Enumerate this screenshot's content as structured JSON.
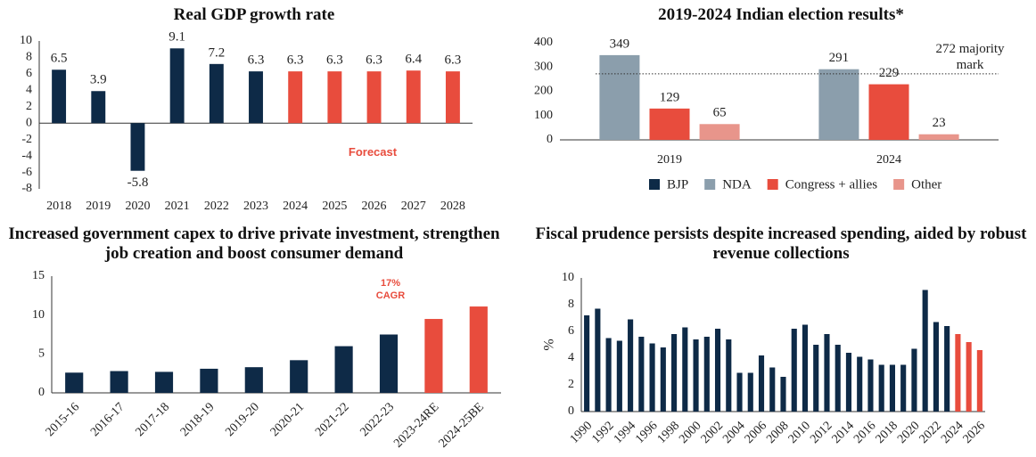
{
  "chart_data": [
    {
      "type": "bar",
      "title": "Real GDP growth rate",
      "categories": [
        "2018",
        "2019",
        "2020",
        "2021",
        "2022",
        "2023",
        "2024",
        "2025",
        "2026",
        "2027",
        "2028"
      ],
      "values": [
        6.5,
        3.9,
        -5.8,
        9.1,
        7.2,
        6.3,
        6.3,
        6.3,
        6.3,
        6.4,
        6.3
      ],
      "colors": [
        "#0e2a47",
        "#0e2a47",
        "#0e2a47",
        "#0e2a47",
        "#0e2a47",
        "#0e2a47",
        "#e84c3d",
        "#e84c3d",
        "#e84c3d",
        "#e84c3d",
        "#e84c3d"
      ],
      "annotation": "Forecast",
      "ylim": [
        -8,
        10
      ],
      "yticks": [
        -8,
        -6,
        -4,
        -2,
        0,
        2,
        4,
        6,
        8,
        10
      ],
      "data_labels": true,
      "grid": false
    },
    {
      "type": "bar",
      "title": "2019-2024 Indian election results*",
      "categories": [
        "2019",
        "2024"
      ],
      "series": [
        {
          "name": "BJP",
          "color": "#0e2a47",
          "values": [
            null,
            null
          ]
        },
        {
          "name": "NDA",
          "color": "#8b9eac",
          "values": [
            349,
            291
          ]
        },
        {
          "name": "Congress + allies",
          "color": "#e84c3d",
          "values": [
            129,
            229
          ]
        },
        {
          "name": "Other",
          "color": "#e8958b",
          "values": [
            65,
            23
          ]
        }
      ],
      "reference_line": {
        "value": 272,
        "label": "272 majority mark"
      },
      "ylim": [
        0,
        400
      ],
      "yticks": [
        0,
        100,
        200,
        300,
        400
      ],
      "data_labels": true,
      "legend": "bottom",
      "grid": false
    },
    {
      "type": "bar",
      "title": "Increased government capex to drive private investment, strengthen job creation and boost consumer demand",
      "categories": [
        "2015-16",
        "2016-17",
        "2017-18",
        "2018-19",
        "2019-20",
        "2020-21",
        "2021-22",
        "2022-23",
        "2023-24RE",
        "2024-25BE"
      ],
      "values": [
        2.6,
        2.8,
        2.7,
        3.1,
        3.3,
        4.2,
        6.0,
        7.5,
        9.5,
        11.1
      ],
      "colors": [
        "#0e2a47",
        "#0e2a47",
        "#0e2a47",
        "#0e2a47",
        "#0e2a47",
        "#0e2a47",
        "#0e2a47",
        "#0e2a47",
        "#e84c3d",
        "#e84c3d"
      ],
      "annotation": "17% CAGR",
      "ylim": [
        0,
        15
      ],
      "yticks": [
        0,
        5,
        10,
        15
      ],
      "data_labels": false,
      "grid": false
    },
    {
      "type": "bar",
      "title": "Fiscal prudence persists despite increased spending, aided by robust revenue collections",
      "y_label": "%",
      "categories": [
        "1990",
        null,
        "1992",
        null,
        "1994",
        null,
        "1996",
        null,
        "1998",
        null,
        "2000",
        null,
        "2002",
        null,
        "2004",
        null,
        "2006",
        null,
        "2008",
        null,
        "2010",
        null,
        "2012",
        null,
        "2014",
        null,
        "2016",
        null,
        "2018",
        null,
        "2020",
        null,
        "2022",
        null,
        "2024",
        null,
        "2026"
      ],
      "values": [
        7.2,
        7.7,
        5.5,
        5.3,
        6.9,
        5.6,
        5.1,
        4.8,
        5.8,
        6.3,
        5.4,
        5.6,
        6.2,
        5.4,
        2.9,
        2.9,
        4.2,
        3.3,
        2.6,
        6.2,
        6.5,
        5.0,
        5.8,
        5.0,
        4.4,
        4.1,
        3.9,
        3.5,
        3.5,
        3.5,
        4.7,
        9.1,
        6.7,
        6.4,
        5.8,
        5.2,
        4.6
      ],
      "colors": [
        "#0e2a47",
        "#0e2a47",
        "#0e2a47",
        "#0e2a47",
        "#0e2a47",
        "#0e2a47",
        "#0e2a47",
        "#0e2a47",
        "#0e2a47",
        "#0e2a47",
        "#0e2a47",
        "#0e2a47",
        "#0e2a47",
        "#0e2a47",
        "#0e2a47",
        "#0e2a47",
        "#0e2a47",
        "#0e2a47",
        "#0e2a47",
        "#0e2a47",
        "#0e2a47",
        "#0e2a47",
        "#0e2a47",
        "#0e2a47",
        "#0e2a47",
        "#0e2a47",
        "#0e2a47",
        "#0e2a47",
        "#0e2a47",
        "#0e2a47",
        "#0e2a47",
        "#0e2a47",
        "#0e2a47",
        "#0e2a47",
        "#e84c3d",
        "#e84c3d",
        "#e84c3d"
      ],
      "ylim": [
        0,
        10
      ],
      "yticks": [
        0,
        2,
        4,
        6,
        8,
        10
      ],
      "data_labels": false,
      "grid": false
    }
  ]
}
